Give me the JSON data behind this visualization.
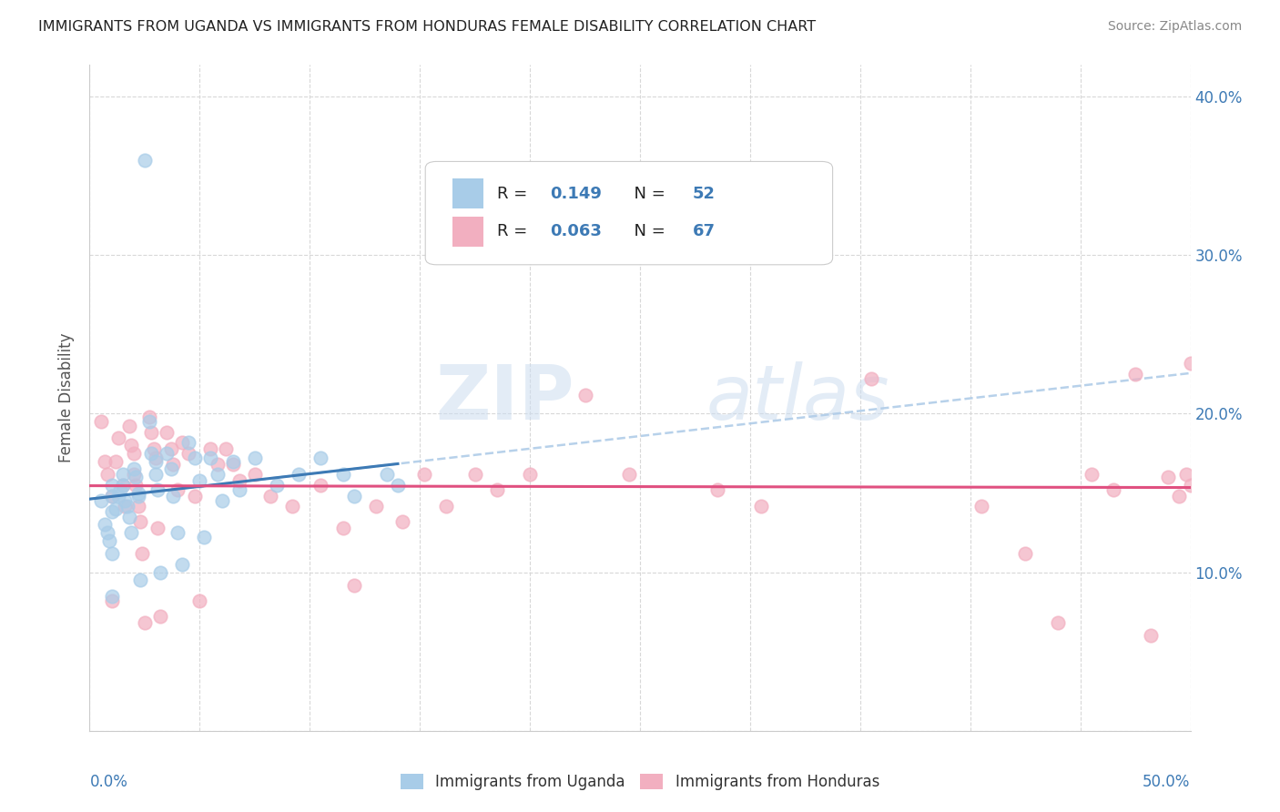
{
  "title": "IMMIGRANTS FROM UGANDA VS IMMIGRANTS FROM HONDURAS FEMALE DISABILITY CORRELATION CHART",
  "source": "Source: ZipAtlas.com",
  "ylabel": "Female Disability",
  "xlim": [
    0.0,
    0.5
  ],
  "ylim": [
    0.0,
    0.42
  ],
  "yticks": [
    0.0,
    0.1,
    0.2,
    0.3,
    0.4
  ],
  "xticks": [
    0.0,
    0.05,
    0.1,
    0.15,
    0.2,
    0.25,
    0.3,
    0.35,
    0.4,
    0.45,
    0.5
  ],
  "watermark_zip": "ZIP",
  "watermark_atlas": "atlas",
  "uganda_color": "#a8cce8",
  "honduras_color": "#f2afc0",
  "uganda_line_color": "#3d7ab5",
  "honduras_line_color": "#e05080",
  "dashed_line_color": "#b0cce8",
  "background_color": "#ffffff",
  "grid_color": "#d8d8d8",
  "title_color": "#222222",
  "right_axis_color": "#3d7ab5",
  "source_color": "#888888",
  "ylabel_color": "#555555",
  "legend_text_color": "#222222",
  "legend_value_color": "#3d7ab5",
  "bottom_label_color": "#333333",
  "uganda_label": "Immigrants from Uganda",
  "honduras_label": "Immigrants from Honduras",
  "uganda_scatter_x": [
    0.005,
    0.007,
    0.008,
    0.009,
    0.01,
    0.01,
    0.01,
    0.01,
    0.01,
    0.012,
    0.013,
    0.014,
    0.015,
    0.015,
    0.016,
    0.017,
    0.018,
    0.019,
    0.02,
    0.021,
    0.022,
    0.022,
    0.023,
    0.025,
    0.027,
    0.028,
    0.03,
    0.03,
    0.031,
    0.032,
    0.035,
    0.037,
    0.038,
    0.04,
    0.042,
    0.045,
    0.048,
    0.05,
    0.052,
    0.055,
    0.058,
    0.06,
    0.065,
    0.068,
    0.075,
    0.085,
    0.095,
    0.105,
    0.115,
    0.12,
    0.135,
    0.14
  ],
  "uganda_scatter_y": [
    0.145,
    0.13,
    0.125,
    0.12,
    0.155,
    0.148,
    0.138,
    0.112,
    0.085,
    0.14,
    0.148,
    0.152,
    0.162,
    0.155,
    0.145,
    0.142,
    0.135,
    0.125,
    0.165,
    0.16,
    0.15,
    0.148,
    0.095,
    0.36,
    0.195,
    0.175,
    0.17,
    0.162,
    0.152,
    0.1,
    0.175,
    0.165,
    0.148,
    0.125,
    0.105,
    0.182,
    0.172,
    0.158,
    0.122,
    0.172,
    0.162,
    0.145,
    0.17,
    0.152,
    0.172,
    0.155,
    0.162,
    0.172,
    0.162,
    0.148,
    0.162,
    0.155
  ],
  "honduras_scatter_x": [
    0.005,
    0.007,
    0.008,
    0.01,
    0.01,
    0.012,
    0.013,
    0.015,
    0.016,
    0.018,
    0.019,
    0.02,
    0.02,
    0.021,
    0.022,
    0.023,
    0.024,
    0.025,
    0.027,
    0.028,
    0.029,
    0.03,
    0.031,
    0.032,
    0.035,
    0.037,
    0.038,
    0.04,
    0.042,
    0.045,
    0.048,
    0.05,
    0.055,
    0.058,
    0.062,
    0.065,
    0.068,
    0.075,
    0.082,
    0.092,
    0.105,
    0.115,
    0.12,
    0.13,
    0.142,
    0.152,
    0.162,
    0.175,
    0.185,
    0.2,
    0.225,
    0.245,
    0.285,
    0.305,
    0.355,
    0.405,
    0.425,
    0.44,
    0.455,
    0.465,
    0.475,
    0.482,
    0.49,
    0.495,
    0.498,
    0.5,
    0.5
  ],
  "honduras_scatter_y": [
    0.195,
    0.17,
    0.162,
    0.148,
    0.082,
    0.17,
    0.185,
    0.155,
    0.142,
    0.192,
    0.18,
    0.175,
    0.162,
    0.155,
    0.142,
    0.132,
    0.112,
    0.068,
    0.198,
    0.188,
    0.178,
    0.172,
    0.128,
    0.072,
    0.188,
    0.178,
    0.168,
    0.152,
    0.182,
    0.175,
    0.148,
    0.082,
    0.178,
    0.168,
    0.178,
    0.168,
    0.158,
    0.162,
    0.148,
    0.142,
    0.155,
    0.128,
    0.092,
    0.142,
    0.132,
    0.162,
    0.142,
    0.162,
    0.152,
    0.162,
    0.212,
    0.162,
    0.152,
    0.142,
    0.222,
    0.142,
    0.112,
    0.068,
    0.162,
    0.152,
    0.225,
    0.06,
    0.16,
    0.148,
    0.162,
    0.155,
    0.232
  ]
}
